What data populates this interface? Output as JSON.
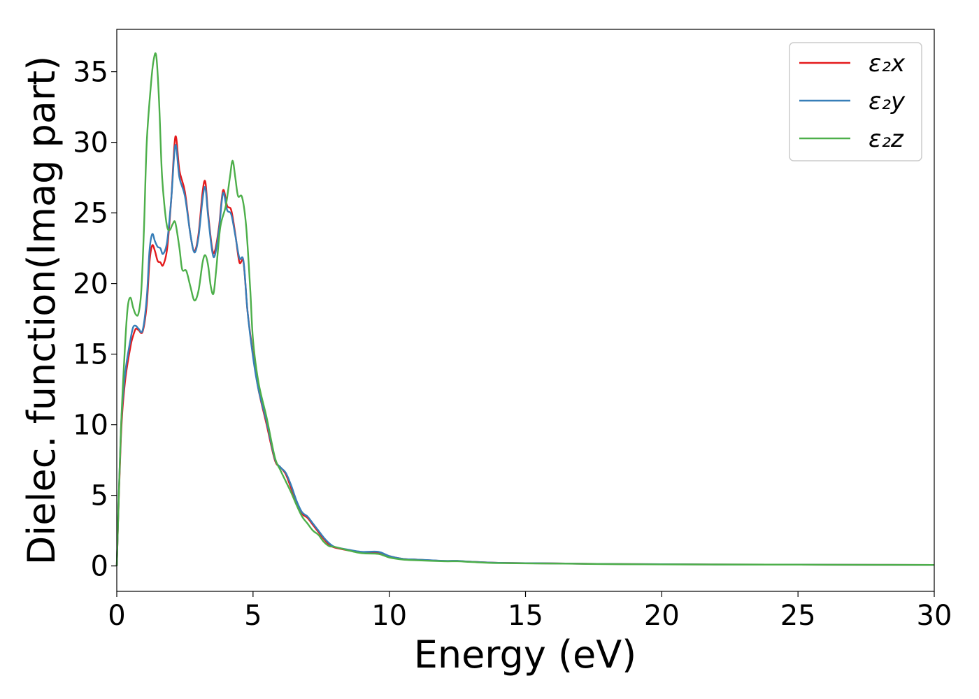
{
  "chart_data": {
    "type": "line",
    "title": "",
    "xlabel": "Energy (eV)",
    "ylabel": "Dielec. function(Imag part)",
    "xlim": [
      0,
      30
    ],
    "ylim": [
      -1.8,
      38
    ],
    "xticks": [
      "0",
      "5",
      "10",
      "15",
      "20",
      "25",
      "30"
    ],
    "yticks": [
      "0",
      "5",
      "10",
      "15",
      "20",
      "25",
      "30",
      "35"
    ],
    "grid": false,
    "legend_position": "top-right",
    "series": [
      {
        "name": "ε₂x",
        "color": "#e41a1c",
        "points": [
          [
            0,
            0
          ],
          [
            0.15,
            9
          ],
          [
            0.3,
            13
          ],
          [
            0.5,
            15.5
          ],
          [
            0.6,
            16.3
          ],
          [
            0.7,
            16.8
          ],
          [
            0.8,
            16.7
          ],
          [
            0.95,
            16.6
          ],
          [
            1.1,
            18.5
          ],
          [
            1.2,
            21.5
          ],
          [
            1.3,
            22.7
          ],
          [
            1.4,
            22.3
          ],
          [
            1.5,
            21.6
          ],
          [
            1.6,
            21.5
          ],
          [
            1.7,
            21.3
          ],
          [
            1.85,
            22.5
          ],
          [
            2.0,
            26
          ],
          [
            2.15,
            30.4
          ],
          [
            2.3,
            28
          ],
          [
            2.5,
            26.5
          ],
          [
            2.7,
            23.5
          ],
          [
            2.85,
            22.3
          ],
          [
            3.0,
            23.5
          ],
          [
            3.15,
            26.5
          ],
          [
            3.25,
            27.2
          ],
          [
            3.35,
            25
          ],
          [
            3.5,
            22.5
          ],
          [
            3.6,
            22.3
          ],
          [
            3.75,
            24
          ],
          [
            3.9,
            26.6
          ],
          [
            4.05,
            25.5
          ],
          [
            4.2,
            25.2
          ],
          [
            4.35,
            23.5
          ],
          [
            4.5,
            21.5
          ],
          [
            4.65,
            21.5
          ],
          [
            4.8,
            18
          ],
          [
            5.0,
            15
          ],
          [
            5.2,
            12.5
          ],
          [
            5.5,
            10
          ],
          [
            5.8,
            7.5
          ],
          [
            6.0,
            7
          ],
          [
            6.2,
            6.5
          ],
          [
            6.4,
            5.5
          ],
          [
            6.6,
            4.5
          ],
          [
            6.8,
            3.7
          ],
          [
            7.0,
            3.4
          ],
          [
            7.2,
            2.9
          ],
          [
            7.4,
            2.4
          ],
          [
            7.6,
            1.9
          ],
          [
            7.8,
            1.5
          ],
          [
            8.0,
            1.3
          ],
          [
            8.5,
            1.1
          ],
          [
            9.0,
            0.95
          ],
          [
            9.6,
            0.95
          ],
          [
            10.0,
            0.7
          ],
          [
            10.5,
            0.5
          ],
          [
            11.0,
            0.45
          ],
          [
            12.0,
            0.35
          ],
          [
            12.5,
            0.35
          ],
          [
            13.0,
            0.3
          ],
          [
            14.0,
            0.22
          ],
          [
            16.0,
            0.18
          ],
          [
            17.0,
            0.16
          ],
          [
            18.0,
            0.14
          ],
          [
            20.0,
            0.12
          ],
          [
            22.0,
            0.1
          ],
          [
            25.0,
            0.09
          ],
          [
            28.0,
            0.08
          ],
          [
            30.0,
            0.07
          ]
        ]
      },
      {
        "name": "ε₂y",
        "color": "#377eb8",
        "points": [
          [
            0,
            0
          ],
          [
            0.15,
            9.5
          ],
          [
            0.3,
            13.5
          ],
          [
            0.5,
            16
          ],
          [
            0.6,
            16.9
          ],
          [
            0.7,
            17
          ],
          [
            0.8,
            16.8
          ],
          [
            0.95,
            16.7
          ],
          [
            1.1,
            19
          ],
          [
            1.2,
            22.3
          ],
          [
            1.3,
            23.5
          ],
          [
            1.4,
            23
          ],
          [
            1.5,
            22.6
          ],
          [
            1.6,
            22.5
          ],
          [
            1.7,
            22.1
          ],
          [
            1.85,
            23
          ],
          [
            2.0,
            26
          ],
          [
            2.15,
            29.8
          ],
          [
            2.3,
            27.5
          ],
          [
            2.5,
            26.2
          ],
          [
            2.7,
            23.5
          ],
          [
            2.85,
            22.2
          ],
          [
            3.0,
            23.3
          ],
          [
            3.15,
            26
          ],
          [
            3.25,
            26.8
          ],
          [
            3.35,
            24.8
          ],
          [
            3.5,
            22.3
          ],
          [
            3.6,
            22
          ],
          [
            3.75,
            23.8
          ],
          [
            3.9,
            26.4
          ],
          [
            4.05,
            25.2
          ],
          [
            4.2,
            24.9
          ],
          [
            4.35,
            23.4
          ],
          [
            4.5,
            21.8
          ],
          [
            4.65,
            21.6
          ],
          [
            4.8,
            18
          ],
          [
            5.0,
            14.8
          ],
          [
            5.2,
            12.5
          ],
          [
            5.5,
            10.2
          ],
          [
            5.8,
            7.6
          ],
          [
            6.0,
            7
          ],
          [
            6.2,
            6.6
          ],
          [
            6.4,
            5.7
          ],
          [
            6.6,
            4.6
          ],
          [
            6.8,
            3.8
          ],
          [
            7.0,
            3.5
          ],
          [
            7.2,
            3
          ],
          [
            7.4,
            2.5
          ],
          [
            7.6,
            2
          ],
          [
            7.8,
            1.6
          ],
          [
            8.0,
            1.35
          ],
          [
            8.5,
            1.15
          ],
          [
            9.0,
            1.0
          ],
          [
            9.6,
            1.0
          ],
          [
            10.0,
            0.7
          ],
          [
            10.5,
            0.5
          ],
          [
            11.0,
            0.45
          ],
          [
            12.0,
            0.36
          ],
          [
            12.5,
            0.36
          ],
          [
            13.0,
            0.3
          ],
          [
            14.0,
            0.22
          ],
          [
            16.0,
            0.18
          ],
          [
            17.0,
            0.16
          ],
          [
            18.0,
            0.14
          ],
          [
            20.0,
            0.12
          ],
          [
            22.0,
            0.1
          ],
          [
            25.0,
            0.09
          ],
          [
            28.0,
            0.08
          ],
          [
            30.0,
            0.07
          ]
        ]
      },
      {
        "name": "ε₂z",
        "color": "#4daf4a",
        "points": [
          [
            0,
            0
          ],
          [
            0.15,
            9.5
          ],
          [
            0.3,
            15.5
          ],
          [
            0.4,
            18.3
          ],
          [
            0.5,
            19
          ],
          [
            0.6,
            18.3
          ],
          [
            0.7,
            17.8
          ],
          [
            0.8,
            17.9
          ],
          [
            0.9,
            19.5
          ],
          [
            1.0,
            24
          ],
          [
            1.1,
            30
          ],
          [
            1.25,
            34
          ],
          [
            1.35,
            35.8
          ],
          [
            1.45,
            36.1
          ],
          [
            1.55,
            33
          ],
          [
            1.65,
            28
          ],
          [
            1.75,
            25.5
          ],
          [
            1.85,
            24
          ],
          [
            1.95,
            23.8
          ],
          [
            2.05,
            24.2
          ],
          [
            2.15,
            24.3
          ],
          [
            2.3,
            22.5
          ],
          [
            2.4,
            21
          ],
          [
            2.55,
            20.9
          ],
          [
            2.7,
            19.8
          ],
          [
            2.85,
            18.8
          ],
          [
            3.0,
            19.5
          ],
          [
            3.15,
            21.5
          ],
          [
            3.25,
            22
          ],
          [
            3.35,
            21.3
          ],
          [
            3.45,
            19.8
          ],
          [
            3.55,
            19.3
          ],
          [
            3.65,
            21
          ],
          [
            3.8,
            24
          ],
          [
            4.0,
            25.5
          ],
          [
            4.15,
            27.5
          ],
          [
            4.25,
            28.7
          ],
          [
            4.35,
            27.5
          ],
          [
            4.45,
            26.2
          ],
          [
            4.6,
            26.1
          ],
          [
            4.75,
            24
          ],
          [
            4.9,
            19.5
          ],
          [
            5.0,
            16
          ],
          [
            5.2,
            13
          ],
          [
            5.5,
            10.5
          ],
          [
            5.8,
            7.7
          ],
          [
            6.0,
            6.8
          ],
          [
            6.2,
            6
          ],
          [
            6.4,
            5.2
          ],
          [
            6.6,
            4.3
          ],
          [
            6.8,
            3.5
          ],
          [
            7.0,
            3
          ],
          [
            7.2,
            2.5
          ],
          [
            7.4,
            2.2
          ],
          [
            7.6,
            1.7
          ],
          [
            7.8,
            1.4
          ],
          [
            8.0,
            1.35
          ],
          [
            8.5,
            1.1
          ],
          [
            9.0,
            0.9
          ],
          [
            9.6,
            0.85
          ],
          [
            10.0,
            0.6
          ],
          [
            10.5,
            0.45
          ],
          [
            11.0,
            0.4
          ],
          [
            12.0,
            0.33
          ],
          [
            12.5,
            0.33
          ],
          [
            13.0,
            0.28
          ],
          [
            14.0,
            0.2
          ],
          [
            16.0,
            0.17
          ],
          [
            17.0,
            0.15
          ],
          [
            18.0,
            0.13
          ],
          [
            20.0,
            0.11
          ],
          [
            22.0,
            0.1
          ],
          [
            25.0,
            0.09
          ],
          [
            28.0,
            0.08
          ],
          [
            30.0,
            0.07
          ]
        ]
      }
    ]
  }
}
